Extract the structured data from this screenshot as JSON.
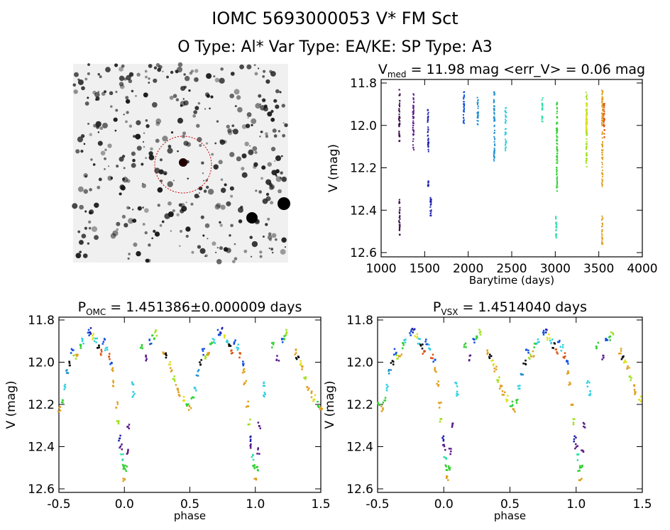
{
  "header": {
    "title": "IOMC 5693000053   V* FM Sct",
    "subtitle": "O Type: Al*  Var Type: EA/KE:  SP Type: A3"
  },
  "image_panel": {
    "description_icon": "star-field-image"
  },
  "palette": [
    "#3a0a4a",
    "#5a1a8a",
    "#2020b0",
    "#1050e0",
    "#2090d0",
    "#30d0e0",
    "#30e0a0",
    "#30d030",
    "#a0e020",
    "#e0e020",
    "#e0a020",
    "#e05010",
    "#000000"
  ],
  "chart_data": [
    {
      "type": "scatter",
      "id": "lightcurve",
      "title_main": "V",
      "title_sub": "med",
      "title_rest": " = 11.98 mag <err_V> = 0.06 mag",
      "xlabel": "Barytime (days)",
      "ylabel": "V (mag)",
      "xlim": [
        1000,
        4000
      ],
      "ylim": [
        12.6,
        11.8
      ],
      "xticks": [
        "1000",
        "1500",
        "2000",
        "2500",
        "3000",
        "3500",
        "4000"
      ],
      "yticks": [
        "11.8",
        "12.0",
        "12.2",
        "12.4",
        "12.6"
      ],
      "segments": [
        [
          1210,
          11.83,
          12.08,
          0
        ],
        [
          1210,
          12.35,
          12.52,
          0
        ],
        [
          1370,
          11.85,
          12.12,
          1
        ],
        [
          1540,
          11.92,
          12.13,
          2
        ],
        [
          1540,
          12.26,
          12.3,
          2
        ],
        [
          1570,
          12.34,
          12.44,
          2
        ],
        [
          1950,
          11.84,
          12.0,
          3
        ],
        [
          2110,
          11.86,
          12.0,
          4
        ],
        [
          2300,
          11.83,
          12.17,
          4
        ],
        [
          2430,
          11.91,
          12.12,
          5
        ],
        [
          2850,
          11.87,
          11.99,
          6
        ],
        [
          3010,
          12.43,
          12.53,
          6
        ],
        [
          3020,
          11.87,
          12.31,
          7
        ],
        [
          3360,
          11.84,
          12.2,
          8
        ],
        [
          3360,
          11.88,
          12.03,
          9
        ],
        [
          3540,
          11.83,
          12.29,
          10
        ],
        [
          3540,
          12.42,
          12.56,
          10
        ],
        [
          3560,
          11.89,
          12.06,
          11
        ]
      ]
    },
    {
      "type": "scatter",
      "id": "phase-omc",
      "title_main": "P",
      "title_sub": "OMC",
      "title_rest": " = 1.451386±0.000009 days",
      "xlabel": "phase",
      "ylabel": "V (mag)",
      "xlim": [
        -0.5,
        1.5
      ],
      "ylim": [
        12.6,
        11.8
      ],
      "xticks": [
        "-0.5",
        "0.0",
        "0.5",
        "1.0",
        "1.5"
      ],
      "yticks": [
        "11.8",
        "12.0",
        "12.2",
        "12.4",
        "12.6"
      ],
      "phase_shift": 0
    },
    {
      "type": "scatter",
      "id": "phase-vsx",
      "title_main": "P",
      "title_sub": "VSX",
      "title_rest": " = 1.4514040 days",
      "xlabel": "phase",
      "ylabel": "V (mag)",
      "xlim": [
        -0.5,
        1.5
      ],
      "ylim": [
        12.6,
        11.8
      ],
      "xticks": [
        "-0.5",
        "0.0",
        "0.5",
        "1.0",
        "1.5"
      ],
      "yticks": [
        "11.8",
        "12.0",
        "12.2",
        "12.4",
        "12.6"
      ],
      "phase_shift": 0.03
    }
  ],
  "phase_points": [
    [
      0.0,
      12.55,
      10
    ],
    [
      0.01,
      12.5,
      7
    ],
    [
      0.02,
      12.42,
      1
    ],
    [
      0.03,
      12.3,
      1
    ],
    [
      0.06,
      12.1,
      5
    ],
    [
      0.07,
      12.15,
      5
    ],
    [
      0.13,
      11.92,
      7
    ],
    [
      0.17,
      11.98,
      1
    ],
    [
      0.2,
      11.9,
      3
    ],
    [
      0.22,
      11.88,
      7
    ],
    [
      0.24,
      11.86,
      8
    ],
    [
      0.3,
      11.95,
      10
    ],
    [
      0.32,
      11.97,
      12
    ],
    [
      0.34,
      12.0,
      9
    ],
    [
      0.36,
      12.03,
      10
    ],
    [
      0.38,
      12.08,
      8
    ],
    [
      0.4,
      12.12,
      10
    ],
    [
      0.42,
      12.15,
      10
    ],
    [
      0.45,
      12.17,
      9
    ],
    [
      0.48,
      12.2,
      7
    ],
    [
      0.5,
      12.22,
      10
    ],
    [
      0.52,
      12.18,
      7
    ],
    [
      0.54,
      12.12,
      5
    ],
    [
      0.56,
      12.05,
      4
    ],
    [
      0.58,
      12.0,
      12
    ],
    [
      0.6,
      11.95,
      3
    ],
    [
      0.62,
      11.97,
      8
    ],
    [
      0.64,
      11.96,
      10
    ],
    [
      0.66,
      11.92,
      7
    ],
    [
      0.68,
      11.9,
      5
    ],
    [
      0.72,
      11.86,
      3
    ],
    [
      0.74,
      11.85,
      2
    ],
    [
      0.76,
      11.88,
      9
    ],
    [
      0.78,
      11.9,
      5
    ],
    [
      0.8,
      11.92,
      12
    ],
    [
      0.82,
      11.95,
      11
    ],
    [
      0.84,
      11.9,
      3
    ],
    [
      0.86,
      11.93,
      5
    ],
    [
      0.88,
      11.97,
      11
    ],
    [
      0.9,
      12.0,
      3
    ],
    [
      0.91,
      12.04,
      10
    ],
    [
      0.92,
      12.1,
      10
    ],
    [
      0.94,
      12.2,
      10
    ],
    [
      0.95,
      12.28,
      8
    ],
    [
      0.96,
      12.36,
      2
    ],
    [
      0.97,
      12.4,
      1
    ],
    [
      0.98,
      12.45,
      6
    ],
    [
      0.99,
      12.5,
      7
    ]
  ]
}
